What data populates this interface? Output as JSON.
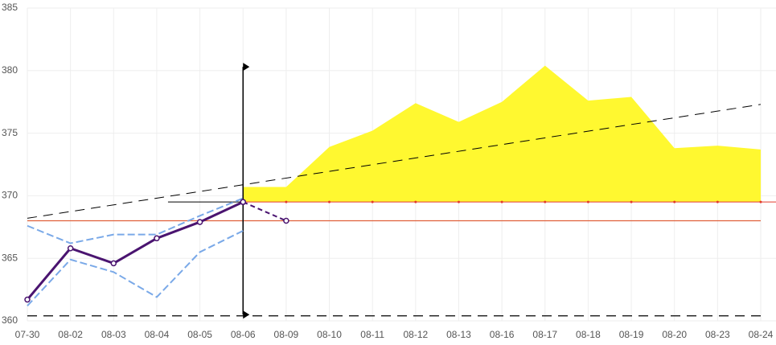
{
  "chart_data": {
    "type": "line",
    "categories": [
      "07-30",
      "08-02",
      "08-03",
      "08-04",
      "08-05",
      "08-06",
      "08-09",
      "08-10",
      "08-11",
      "08-12",
      "08-13",
      "08-16",
      "08-17",
      "08-18",
      "08-19",
      "08-20",
      "08-23",
      "08-24"
    ],
    "ylim": [
      360,
      385
    ],
    "yticks": [
      360,
      365,
      370,
      375,
      380,
      385
    ],
    "grid": true,
    "area": {
      "color": "#fff830",
      "line_color": "#e23b2c",
      "values": [
        null,
        null,
        null,
        null,
        null,
        370.7,
        370.7,
        373.9,
        375.2,
        377.4,
        375.9,
        377.5,
        380.4,
        377.6,
        377.9,
        373.8,
        374.0,
        373.7
      ],
      "base": [
        null,
        null,
        null,
        null,
        null,
        369.5,
        369.5,
        369.5,
        369.5,
        369.5,
        369.5,
        369.5,
        369.5,
        369.5,
        369.5,
        369.5,
        369.5,
        369.5
      ]
    },
    "series": [
      {
        "color": "#7aa9e8",
        "dash": "9,4",
        "width": 2,
        "values": [
          367.6,
          366.2,
          366.9,
          366.9,
          368.4,
          369.8,
          null,
          null,
          null,
          null,
          null,
          null,
          null,
          null,
          null,
          null,
          null,
          null
        ]
      },
      {
        "color": "#7aa9e8",
        "dash": "9,4",
        "width": 2,
        "values": [
          361.2,
          364.9,
          363.9,
          361.9,
          365.5,
          367.2,
          null,
          null,
          null,
          null,
          null,
          null,
          null,
          null,
          null,
          null,
          null,
          null
        ]
      },
      {
        "color": "#4a1470",
        "dash": "none",
        "width": 3,
        "markers": true,
        "values": [
          361.7,
          365.8,
          364.6,
          366.6,
          367.9,
          369.5,
          null,
          null,
          null,
          null,
          null,
          null,
          null,
          null,
          null,
          null,
          null,
          null
        ]
      },
      {
        "color": "#4a1470",
        "dash": "6,4",
        "width": 2,
        "markers": true,
        "values": [
          null,
          null,
          null,
          null,
          null,
          369.5,
          368.0,
          null,
          null,
          null,
          null,
          null,
          null,
          null,
          null,
          null,
          null,
          null
        ]
      }
    ],
    "hlines": [
      {
        "value": 368.0,
        "color": "#e0603a",
        "dash": "none"
      },
      {
        "value": 360.4,
        "color": "#000000",
        "dash": "12,8"
      }
    ],
    "trend": {
      "start": 368.2,
      "end": 377.3,
      "color": "#000000",
      "dash": "12,8"
    },
    "vline": {
      "at": 5,
      "from": 360.5,
      "to": 380.3,
      "color": "#000000"
    },
    "guide": {
      "from": 3,
      "to": 5,
      "value": 369.5,
      "color": "#000000"
    }
  }
}
